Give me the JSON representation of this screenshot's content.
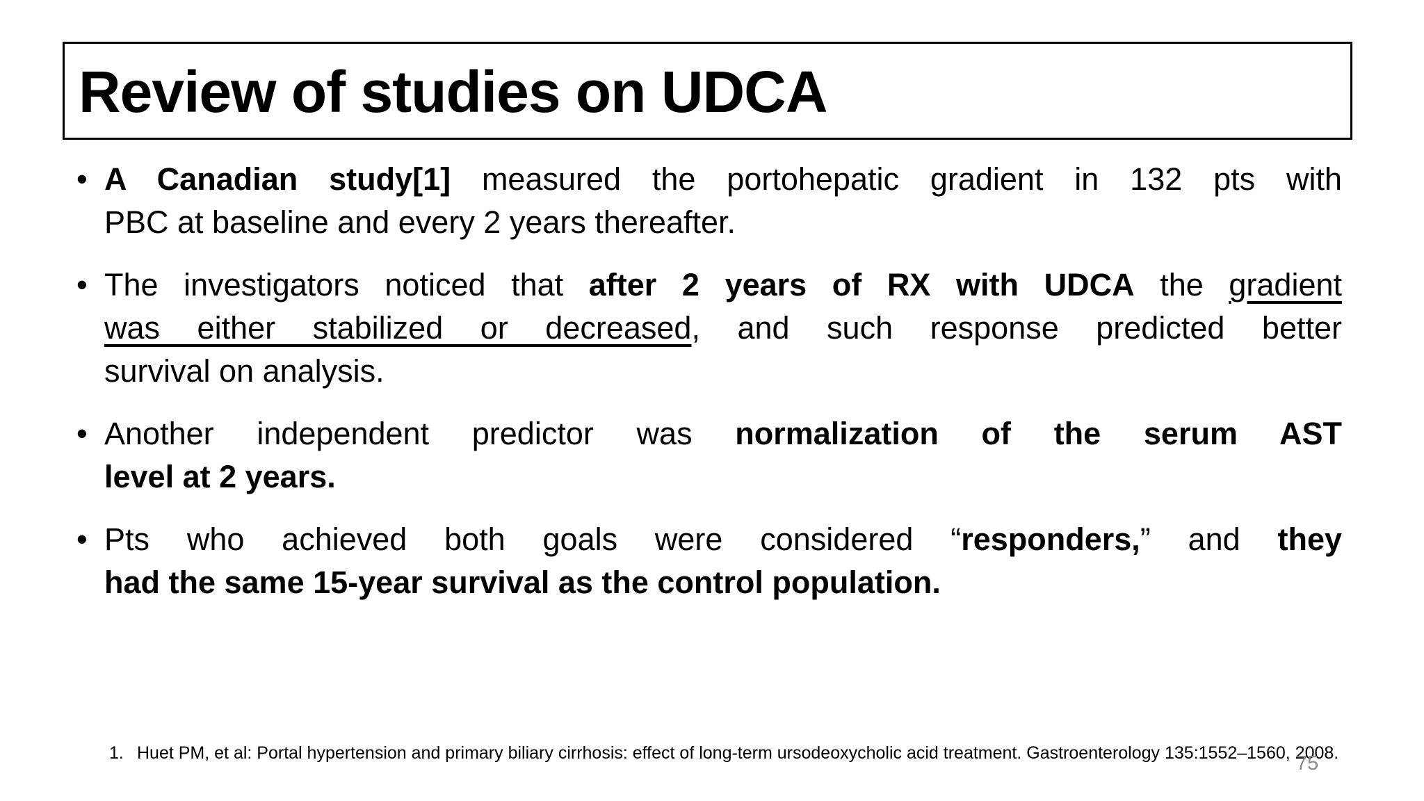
{
  "slide": {
    "title": "Review of studies on UDCA",
    "bullet_char": "•",
    "bullets": [
      {
        "lines": [
          [
            {
              "t": "A Canadian study[1]",
              "b": 1
            },
            {
              "t": " measured the portohepatic gradient in 132 pts with"
            }
          ],
          [
            {
              "t": "PBC at baseline and every 2 years thereafter."
            }
          ]
        ]
      },
      {
        "lines": [
          [
            {
              "t": "The investigators noticed that "
            },
            {
              "t": "after 2 years of RX with UDCA",
              "b": 1
            },
            {
              "t": " the "
            },
            {
              "t": "gradient",
              "u": 1
            }
          ],
          [
            {
              "t": "was either stabilized or decreased",
              "u": 1
            },
            {
              "t": ", and such response predicted better"
            }
          ],
          [
            {
              "t": "survival on analysis."
            }
          ]
        ]
      },
      {
        "lines": [
          [
            {
              "t": "Another independent predictor was "
            },
            {
              "t": "normalization of the serum AST",
              "b": 1
            }
          ],
          [
            {
              "t": "level at 2 years.",
              "b": 1
            }
          ]
        ]
      },
      {
        "lines": [
          [
            {
              "t": "Pts who achieved both goals were considered “"
            },
            {
              "t": "responders,",
              "b": 1
            },
            {
              "t": "” and "
            },
            {
              "t": "they",
              "b": 1
            }
          ],
          [
            {
              "t": "had the same 15-year survival as the control population.",
              "b": 1
            }
          ]
        ]
      }
    ],
    "footnote": {
      "number": "1.",
      "text": "Huet PM, et al: Portal hypertension and primary biliary cirrhosis: effect of long-term ursodeoxycholic acid treatment. Gastroenterology 135:1552–1560, 2008."
    },
    "page_number": "75"
  },
  "colors": {
    "background": "#ffffff",
    "text": "#000000",
    "title_border": "#000000",
    "page_number": "#8a8a8a"
  }
}
